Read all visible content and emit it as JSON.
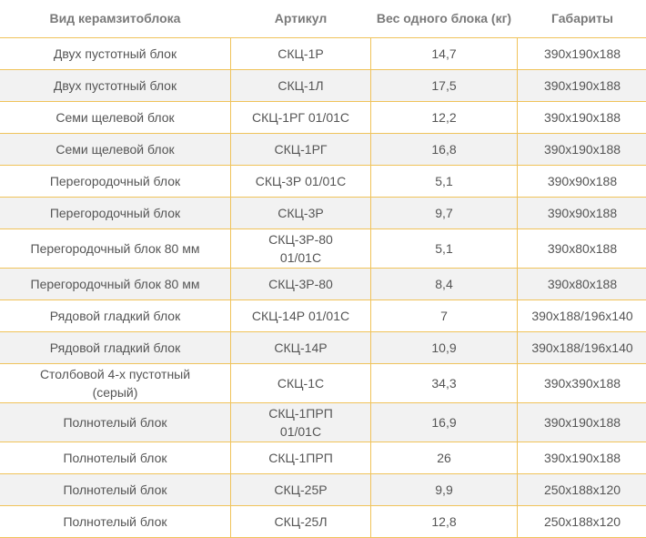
{
  "table": {
    "headers": [
      "Вид керамзитоблока",
      "Артикул",
      "Вес одного блока (кг)",
      "Габариты"
    ],
    "rows": [
      [
        "Двух пустотный блок",
        "СКЦ-1Р",
        "14,7",
        "390x190x188"
      ],
      [
        "Двух пустотный блок",
        "СКЦ-1Л",
        "17,5",
        "390x190x188"
      ],
      [
        "Семи щелевой блок",
        "СКЦ-1РГ 01/01С",
        "12,2",
        "390x190x188"
      ],
      [
        "Семи щелевой блок",
        "СКЦ-1РГ",
        "16,8",
        "390x190x188"
      ],
      [
        "Перегородочный блок",
        "СКЦ-3Р 01/01С",
        "5,1",
        "390x90x188"
      ],
      [
        "Перегородочный блок",
        "СКЦ-3Р",
        "9,7",
        "390x90x188"
      ],
      [
        "Перегородочный блок 80 мм",
        "СКЦ-3Р-80 01/01С",
        "5,1",
        "390x80x188"
      ],
      [
        "Перегородочный блок 80 мм",
        "СКЦ-3Р-80",
        "8,4",
        "390x80x188"
      ],
      [
        "Рядовой гладкий блок",
        "СКЦ-14Р 01/01С",
        "7",
        "390x188/196x140"
      ],
      [
        "Рядовой гладкий блок",
        "СКЦ-14Р",
        "10,9",
        "390x188/196x140"
      ],
      [
        "Столбовой 4-х пустотный (серый)",
        "СКЦ-1С",
        "34,3",
        "390x390x188"
      ],
      [
        "Полнотелый блок",
        "СКЦ-1ПРП 01/01С",
        "16,9",
        "390x190x188"
      ],
      [
        "Полнотелый блок",
        "СКЦ-1ПРП",
        "26",
        "390x190x188"
      ],
      [
        "Полнотелый блок",
        "СКЦ-25Р",
        "9,9",
        "250x188x120"
      ],
      [
        "Полнотелый блок",
        "СКЦ-25Л",
        "12,8",
        "250x188x120"
      ]
    ]
  },
  "colors": {
    "border": "#f0c35a",
    "header_text": "#7a7a7a",
    "cell_text": "#555555",
    "row_alt_background": "#f2f2f2"
  }
}
